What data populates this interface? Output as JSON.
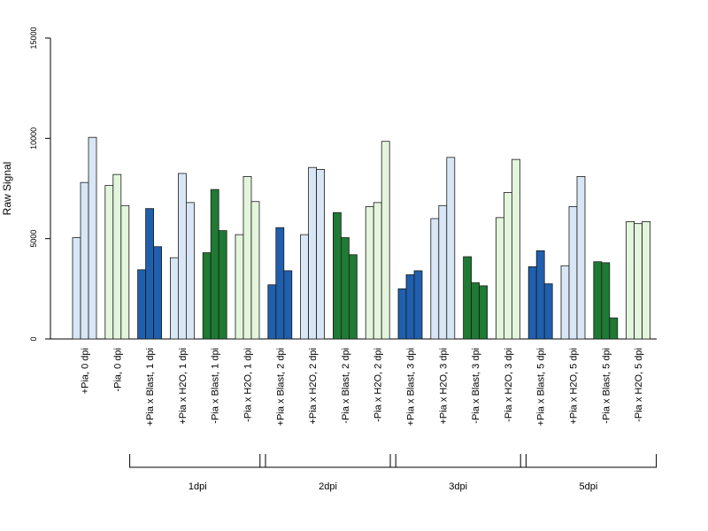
{
  "chart_data": {
    "type": "bar",
    "title": "",
    "xlabel": "",
    "ylabel": "Raw Signal",
    "ylim": [
      0,
      15000
    ],
    "yticks": [
      0,
      5000,
      10000,
      15000
    ],
    "grid": false,
    "legend": "none",
    "colors": {
      "light_blue": "#d9e6f5",
      "dark_blue": "#1f5fad",
      "light_green": "#e3f5dc",
      "dark_green": "#1f7a33",
      "outline": "#1a1a1a"
    },
    "categories": [
      {
        "label": "+Pia, 0 dpi",
        "color": "light_blue",
        "values": [
          5050,
          7800,
          10050
        ]
      },
      {
        "label": "-Pia, 0 dpi",
        "color": "light_green",
        "values": [
          7650,
          8200,
          6650
        ]
      },
      {
        "label": "+Pia x Blast, 1 dpi",
        "color": "dark_blue",
        "values": [
          3450,
          6500,
          4600
        ]
      },
      {
        "label": "+Pia x H2O, 1 dpi",
        "color": "light_blue",
        "values": [
          4050,
          8250,
          6800
        ]
      },
      {
        "label": "-Pia x Blast, 1 dpi",
        "color": "dark_green",
        "values": [
          4300,
          7450,
          5400
        ]
      },
      {
        "label": "-Pia x H2O, 1 dpi",
        "color": "light_green",
        "values": [
          5200,
          8100,
          6850
        ]
      },
      {
        "label": "+Pia x Blast, 2 dpi",
        "color": "dark_blue",
        "values": [
          2700,
          5550,
          3400
        ]
      },
      {
        "label": "+Pia x H2O, 2 dpi",
        "color": "light_blue",
        "values": [
          5200,
          8550,
          8450
        ]
      },
      {
        "label": "-Pia x Blast, 2 dpi",
        "color": "dark_green",
        "values": [
          6300,
          5050,
          4200
        ]
      },
      {
        "label": "-Pia x H2O, 2 dpi",
        "color": "light_green",
        "values": [
          6600,
          6800,
          9850
        ]
      },
      {
        "label": "+Pia x Blast, 3 dpi",
        "color": "dark_blue",
        "values": [
          2500,
          3200,
          3400
        ]
      },
      {
        "label": "+Pia x H2O, 3 dpi",
        "color": "light_blue",
        "values": [
          6000,
          6650,
          9050
        ]
      },
      {
        "label": "-Pia x Blast, 3 dpi",
        "color": "dark_green",
        "values": [
          4100,
          2800,
          2650
        ]
      },
      {
        "label": "-Pia x H2O, 3 dpi",
        "color": "light_green",
        "values": [
          6050,
          7300,
          8950
        ]
      },
      {
        "label": "+Pia x Blast, 5 dpi",
        "color": "dark_blue",
        "values": [
          3600,
          4400,
          2750
        ]
      },
      {
        "label": "+Pia x H2O, 5 dpi",
        "color": "light_blue",
        "values": [
          3650,
          6600,
          8100
        ]
      },
      {
        "label": "-Pia x Blast, 5 dpi",
        "color": "dark_green",
        "values": [
          3850,
          3800,
          1050
        ]
      },
      {
        "label": "-Pia x H2O, 5 dpi",
        "color": "light_green",
        "values": [
          5850,
          5750,
          5850
        ]
      }
    ],
    "groups": [
      {
        "label": "1dpi",
        "first": 2,
        "last": 5
      },
      {
        "label": "2dpi",
        "first": 6,
        "last": 9
      },
      {
        "label": "3dpi",
        "first": 10,
        "last": 13
      },
      {
        "label": "5dpi",
        "first": 14,
        "last": 17
      }
    ]
  }
}
